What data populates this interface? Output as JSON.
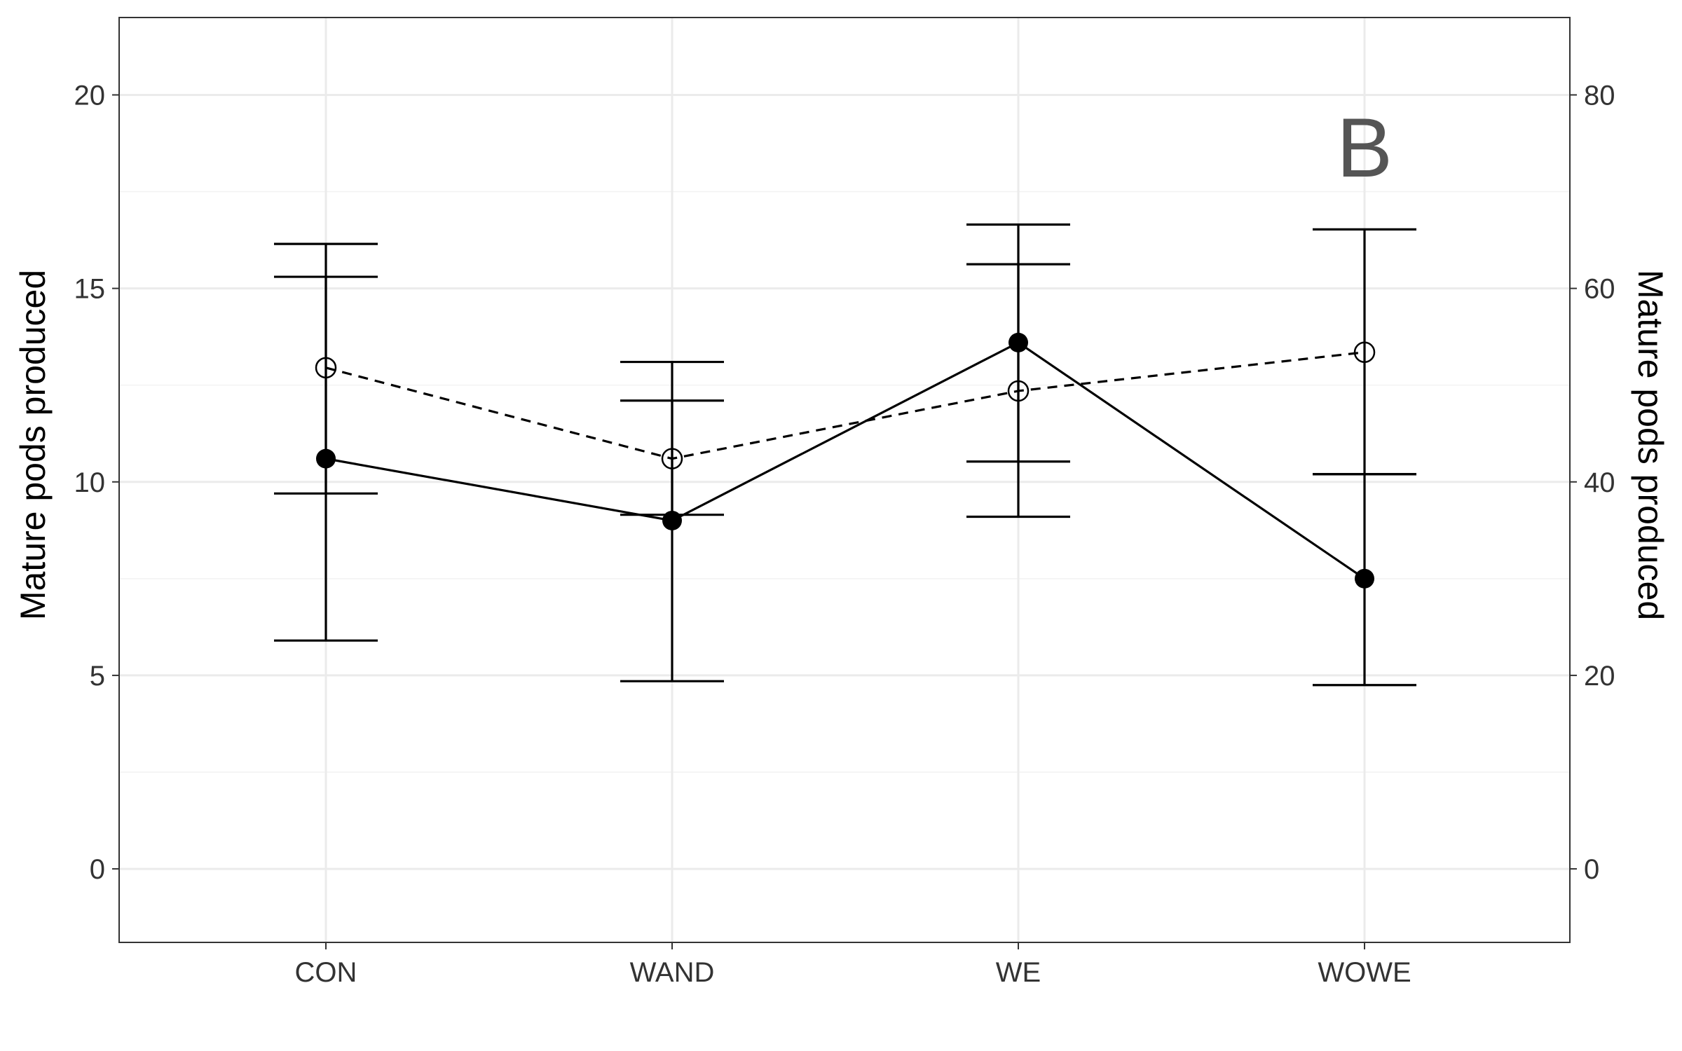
{
  "chart_data": {
    "type": "line",
    "categories": [
      "CON",
      "WAND",
      "WE",
      "WOWE"
    ],
    "ylabel_left": "Mature pods produced",
    "ylabel_right": "Mature pods produced",
    "xlabel": "",
    "ylim_left": [
      0,
      20
    ],
    "ylim_right": [
      0,
      80
    ],
    "yticks_left": [
      0,
      5,
      10,
      15,
      20
    ],
    "yticks_right": [
      0,
      20,
      40,
      60,
      80
    ],
    "panel_label": "B",
    "grid": true,
    "series": [
      {
        "axis": "left",
        "marker": "filled-circle",
        "linestyle": "solid",
        "values": [
          10.6,
          9.0,
          13.6,
          7.5
        ],
        "error_low": [
          5.9,
          4.85,
          9.1,
          4.75
        ],
        "error_high": [
          15.3,
          13.1,
          16.65,
          10.2
        ]
      },
      {
        "axis": "right",
        "marker": "open-circle",
        "linestyle": "dashed",
        "values": [
          51.8,
          42.4,
          49.4,
          53.4
        ],
        "error_low": [
          38.8,
          36.6,
          42.1,
          40.8
        ],
        "error_high": [
          64.6,
          48.4,
          62.5,
          66.1
        ]
      }
    ],
    "colors": {
      "line": "#000000",
      "grid": "#ebebeb",
      "panel_border": "#333333",
      "tick_text": "#333333",
      "panel_label": "#555555"
    }
  }
}
